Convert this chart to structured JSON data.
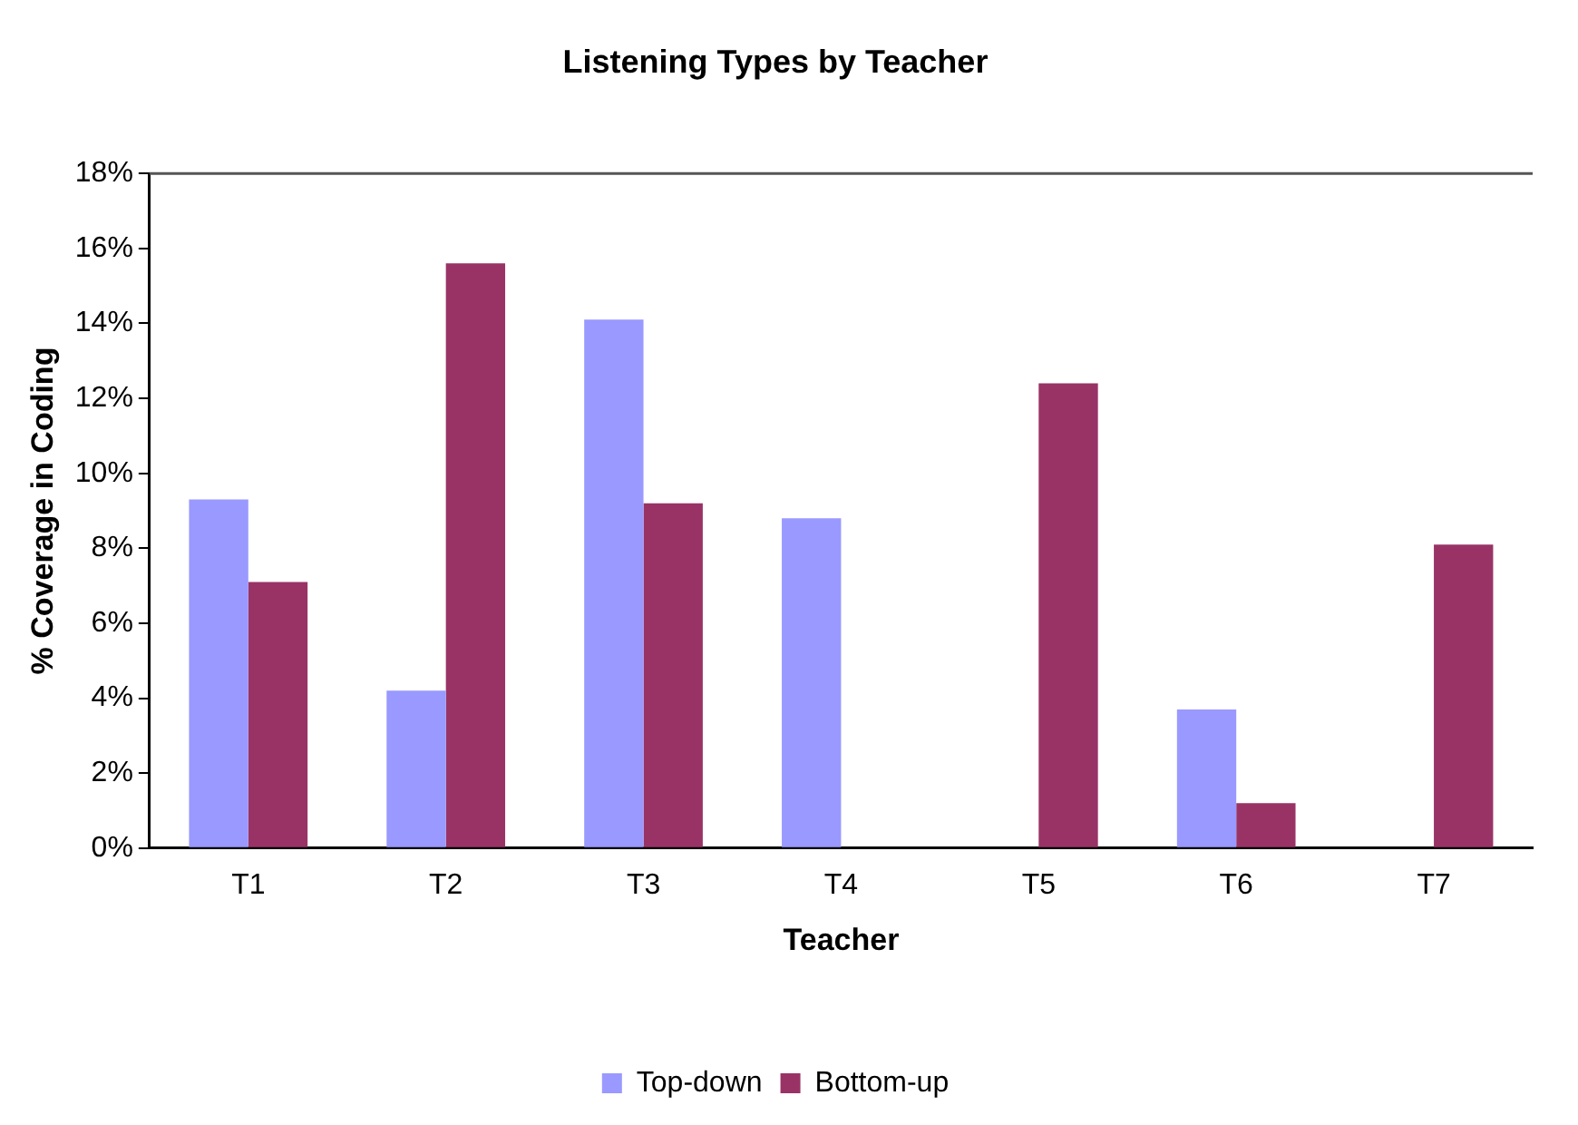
{
  "chart_data": {
    "type": "bar",
    "title": "Listening Types by Teacher",
    "xlabel": "Teacher",
    "ylabel": "% Coverage in Coding",
    "categories": [
      "T1",
      "T2",
      "T3",
      "T4",
      "T5",
      "T6",
      "T7"
    ],
    "series": [
      {
        "name": "Top-down",
        "color": "#9999ff",
        "values": [
          9.3,
          4.2,
          14.1,
          8.8,
          0,
          3.7,
          0
        ]
      },
      {
        "name": "Bottom-up",
        "color": "#993366",
        "values": [
          7.1,
          15.6,
          9.2,
          0,
          12.4,
          1.2,
          8.1
        ]
      }
    ],
    "ylim": [
      0,
      18
    ],
    "yticks": [
      {
        "value": 0,
        "label": "0%"
      },
      {
        "value": 2,
        "label": "2%"
      },
      {
        "value": 4,
        "label": "4%"
      },
      {
        "value": 6,
        "label": "6%"
      },
      {
        "value": 8,
        "label": "8%"
      },
      {
        "value": 10,
        "label": "10%"
      },
      {
        "value": 12,
        "label": "12%"
      },
      {
        "value": 14,
        "label": "14%"
      },
      {
        "value": 16,
        "label": "16%"
      },
      {
        "value": 18,
        "label": "18%"
      }
    ],
    "grid": false,
    "legend": "bottom"
  }
}
